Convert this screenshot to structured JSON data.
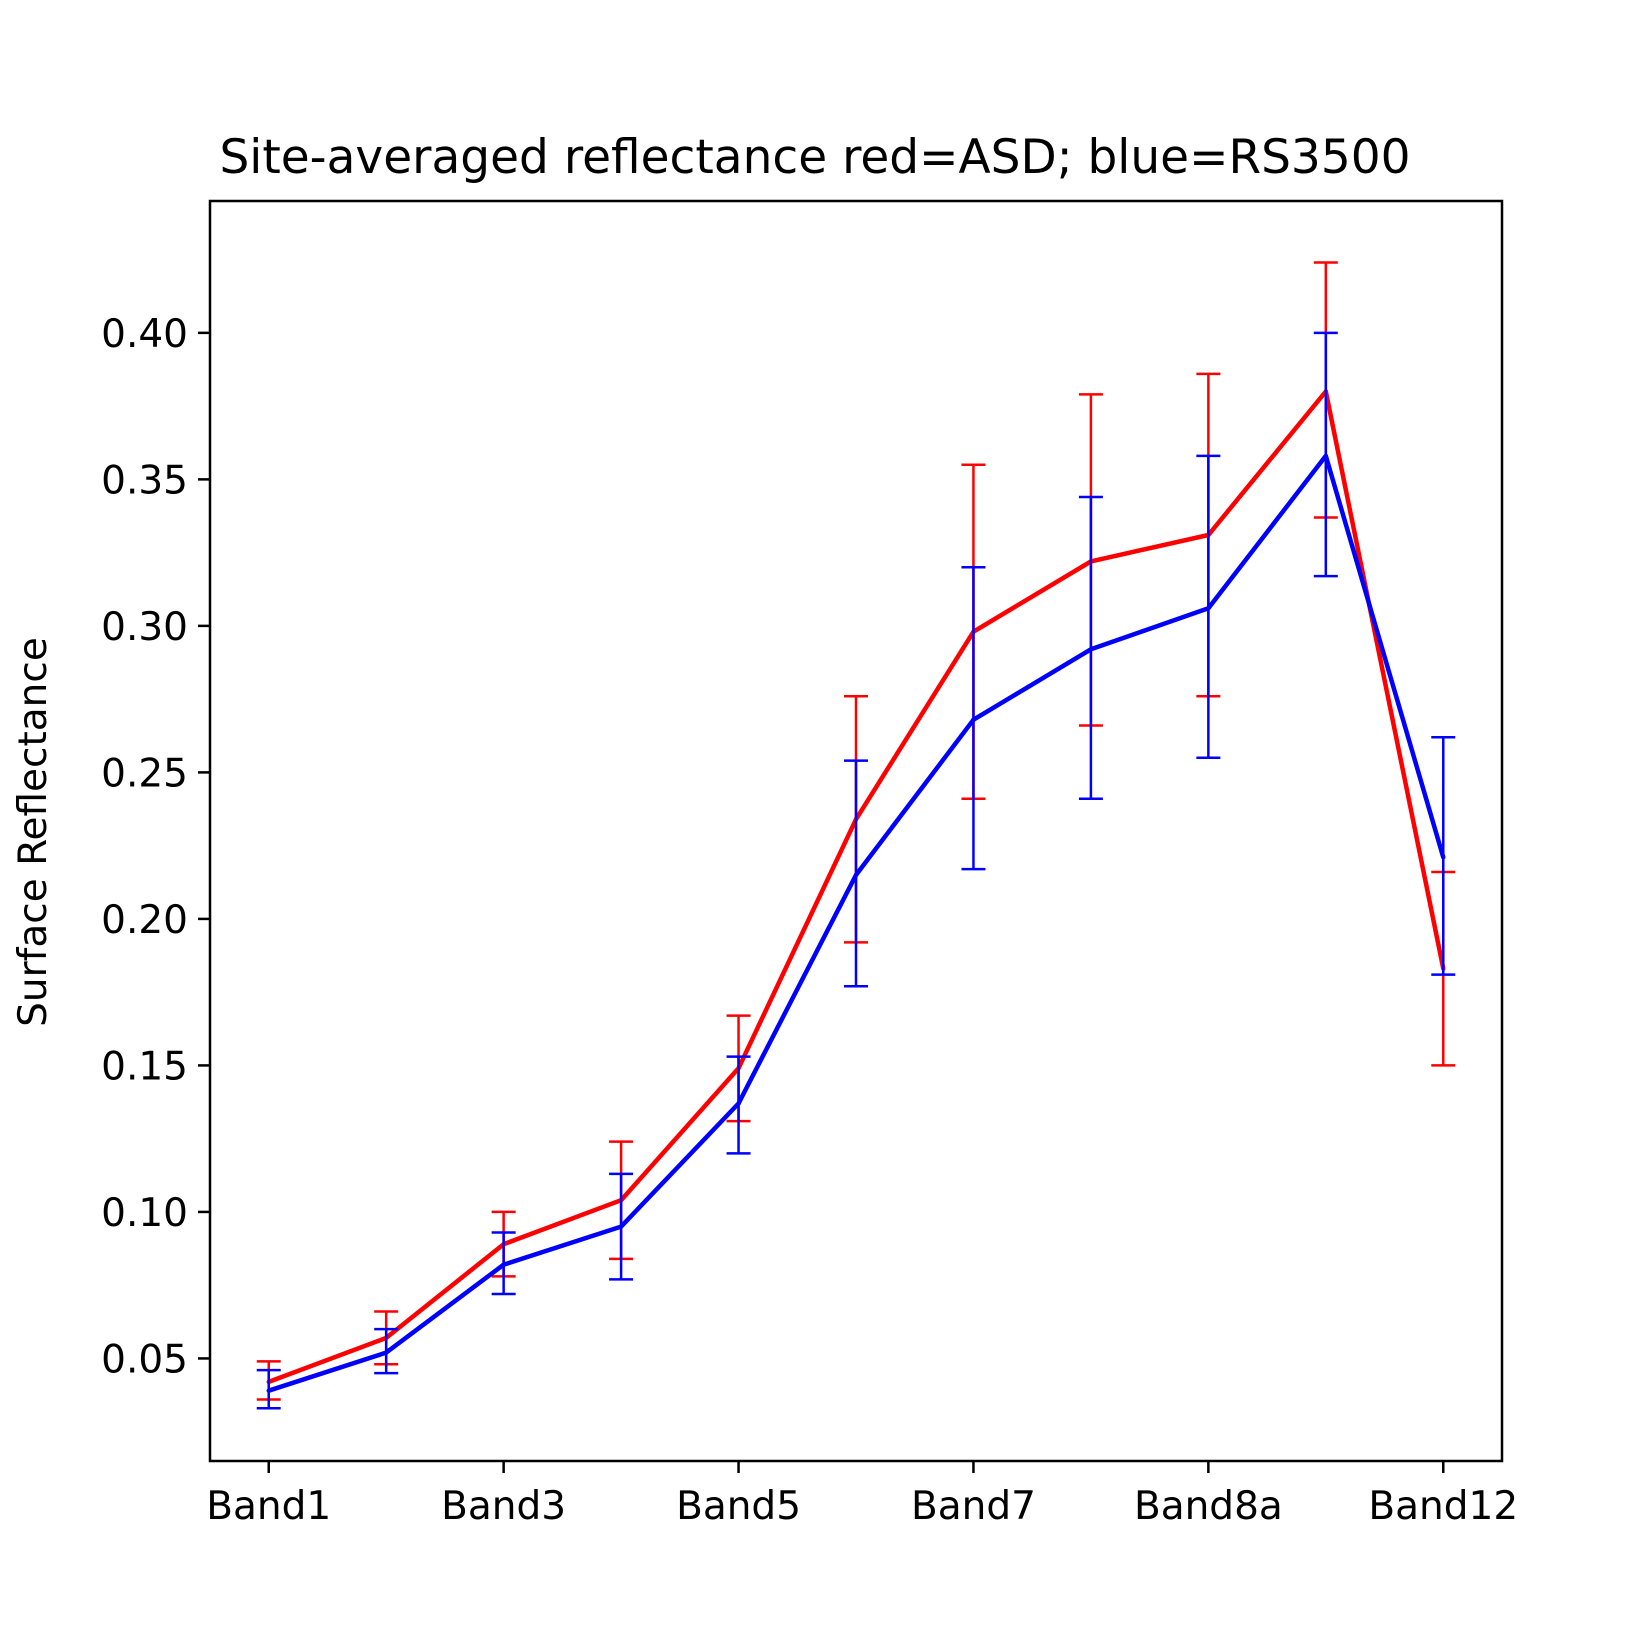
{
  "chart_data": {
    "type": "line",
    "title": "Site-averaged reflectance  red=ASD; blue=RS3500",
    "xlabel": "",
    "ylabel": "Surface Reflectance",
    "x_tick_labels": [
      "Band1",
      "Band3",
      "Band5",
      "Band7",
      "Band8a",
      "Band12"
    ],
    "x_tick_positions": [
      0,
      2,
      4,
      6,
      8,
      10
    ],
    "xlim": [
      -0.5,
      10.5
    ],
    "ylim": [
      0.015,
      0.445
    ],
    "y_ticks": [
      0.05,
      0.1,
      0.15,
      0.2,
      0.25,
      0.3,
      0.35,
      0.4
    ],
    "y_tick_labels": [
      "0.05",
      "0.10",
      "0.15",
      "0.20",
      "0.25",
      "0.30",
      "0.35",
      "0.40"
    ],
    "grid": false,
    "legend": "none",
    "series": [
      {
        "color": "#ff0000",
        "x": [
          0,
          1,
          2,
          3,
          4,
          5,
          6,
          7,
          8,
          9,
          10
        ],
        "values": [
          0.042,
          0.057,
          0.089,
          0.104,
          0.149,
          0.234,
          0.298,
          0.322,
          0.331,
          0.38,
          0.183
        ],
        "error_low": [
          0.036,
          0.048,
          0.078,
          0.084,
          0.131,
          0.192,
          0.241,
          0.266,
          0.276,
          0.337,
          0.15
        ],
        "error_high": [
          0.049,
          0.066,
          0.1,
          0.124,
          0.167,
          0.276,
          0.355,
          0.379,
          0.386,
          0.424,
          0.216
        ]
      },
      {
        "color": "#0000ff",
        "x": [
          0,
          1,
          2,
          3,
          4,
          5,
          6,
          7,
          8,
          9,
          10
        ],
        "values": [
          0.039,
          0.052,
          0.082,
          0.095,
          0.137,
          0.215,
          0.268,
          0.292,
          0.306,
          0.358,
          0.221
        ],
        "error_low": [
          0.033,
          0.045,
          0.072,
          0.077,
          0.12,
          0.177,
          0.217,
          0.241,
          0.255,
          0.317,
          0.181
        ],
        "error_high": [
          0.046,
          0.06,
          0.093,
          0.113,
          0.153,
          0.254,
          0.32,
          0.344,
          0.358,
          0.4,
          0.262
        ]
      }
    ]
  }
}
